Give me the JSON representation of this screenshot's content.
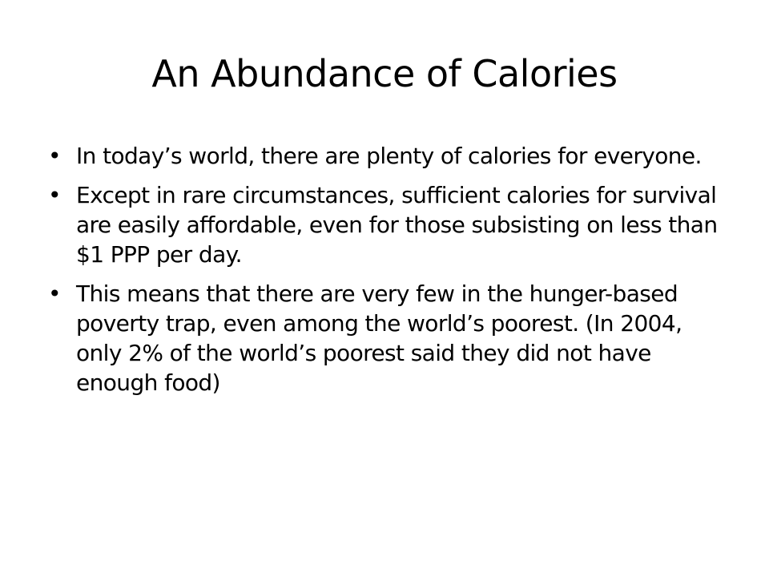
{
  "header": {
    "title": "An Abundance of Calories"
  },
  "bullets": [
    "In today’s world, there are plenty of calories for everyone.",
    "Except in rare circumstances, sufficient calories for survival are easily affordable, even for those subsisting on less than $1 PPP per day.",
    "This means that there are very few in the hunger-based poverty trap, even among the world’s poorest. (In 2004, only 2% of the world’s poorest said they did not have enough food)"
  ]
}
